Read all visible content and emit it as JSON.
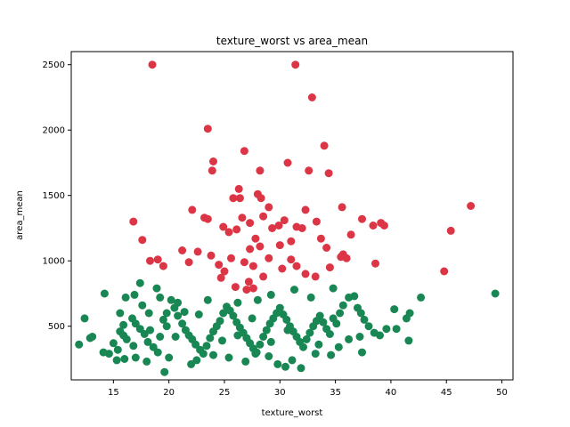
{
  "chart_data": {
    "type": "scatter",
    "title": "texture_worst vs area_mean",
    "xlabel": "texture_worst",
    "ylabel": "area_mean",
    "xlim": [
      11.2,
      51.0
    ],
    "ylim": [
      90,
      2600
    ],
    "xticks": [
      15,
      20,
      25,
      30,
      35,
      40,
      45,
      50
    ],
    "yticks": [
      500,
      1000,
      1500,
      2000,
      2500
    ],
    "grid": false,
    "colors": {
      "red": "#dc3545",
      "green": "#198754"
    },
    "series": [
      {
        "color": "#dc3545",
        "points": [
          [
            18.5,
            2500
          ],
          [
            31.4,
            2500
          ],
          [
            32.9,
            2250
          ],
          [
            23.5,
            2010
          ],
          [
            34.0,
            1880
          ],
          [
            26.8,
            1840
          ],
          [
            24.0,
            1760
          ],
          [
            23.9,
            1690
          ],
          [
            28.2,
            1690
          ],
          [
            30.7,
            1750
          ],
          [
            32.6,
            1690
          ],
          [
            34.4,
            1670
          ],
          [
            26.3,
            1550
          ],
          [
            25.8,
            1480
          ],
          [
            26.4,
            1480
          ],
          [
            28.0,
            1510
          ],
          [
            28.3,
            1480
          ],
          [
            22.1,
            1390
          ],
          [
            23.2,
            1330
          ],
          [
            23.5,
            1320
          ],
          [
            29.0,
            1410
          ],
          [
            32.3,
            1390
          ],
          [
            35.6,
            1410
          ],
          [
            28.5,
            1340
          ],
          [
            16.8,
            1300
          ],
          [
            26.6,
            1330
          ],
          [
            27.3,
            1290
          ],
          [
            29.9,
            1270
          ],
          [
            30.4,
            1310
          ],
          [
            31.5,
            1260
          ],
          [
            32.0,
            1250
          ],
          [
            33.3,
            1300
          ],
          [
            36.4,
            1200
          ],
          [
            37.4,
            1320
          ],
          [
            38.4,
            1270
          ],
          [
            39.1,
            1290
          ],
          [
            39.4,
            1270
          ],
          [
            24.9,
            1260
          ],
          [
            25.4,
            1220
          ],
          [
            26.1,
            1240
          ],
          [
            27.8,
            1170
          ],
          [
            29.3,
            1250
          ],
          [
            30.0,
            1120
          ],
          [
            31.0,
            1150
          ],
          [
            33.7,
            1170
          ],
          [
            34.2,
            1100
          ],
          [
            35.7,
            1050
          ],
          [
            45.4,
            1230
          ],
          [
            47.2,
            1420
          ],
          [
            17.6,
            1160
          ],
          [
            18.3,
            1000
          ],
          [
            19.0,
            1010
          ],
          [
            19.5,
            960
          ],
          [
            21.2,
            1080
          ],
          [
            21.8,
            990
          ],
          [
            22.6,
            1070
          ],
          [
            23.8,
            1040
          ],
          [
            24.5,
            970
          ],
          [
            25.0,
            920
          ],
          [
            25.6,
            1020
          ],
          [
            26.8,
            990
          ],
          [
            27.3,
            1090
          ],
          [
            28.2,
            1110
          ],
          [
            29.0,
            1020
          ],
          [
            30.2,
            940
          ],
          [
            31.0,
            1010
          ],
          [
            31.5,
            960
          ],
          [
            32.3,
            900
          ],
          [
            33.2,
            880
          ],
          [
            34.5,
            950
          ],
          [
            35.5,
            1030
          ],
          [
            36.0,
            1020
          ],
          [
            38.6,
            980
          ],
          [
            44.8,
            920
          ],
          [
            27.6,
            960
          ],
          [
            28.5,
            880
          ],
          [
            26.0,
            800
          ],
          [
            27.6,
            790
          ],
          [
            27.2,
            840
          ],
          [
            24.7,
            870
          ],
          [
            27.0,
            780
          ]
        ]
      },
      {
        "color": "#198754",
        "points": [
          [
            12.4,
            560
          ],
          [
            11.9,
            360
          ],
          [
            12.9,
            410
          ],
          [
            14.2,
            750
          ],
          [
            15.0,
            370
          ],
          [
            15.6,
            600
          ],
          [
            15.9,
            510
          ],
          [
            16.1,
            720
          ],
          [
            16.9,
            740
          ],
          [
            17.6,
            660
          ],
          [
            18.9,
            790
          ],
          [
            17.4,
            830
          ],
          [
            15.6,
            460
          ],
          [
            15.9,
            430
          ],
          [
            16.2,
            400
          ],
          [
            16.7,
            560
          ],
          [
            17.0,
            520
          ],
          [
            17.4,
            480
          ],
          [
            17.8,
            440
          ],
          [
            18.1,
            380
          ],
          [
            18.6,
            340
          ],
          [
            19.0,
            300
          ],
          [
            19.2,
            420
          ],
          [
            19.5,
            550
          ],
          [
            19.8,
            600
          ],
          [
            20.2,
            700
          ],
          [
            20.5,
            640
          ],
          [
            20.8,
            580
          ],
          [
            21.2,
            520
          ],
          [
            21.5,
            470
          ],
          [
            21.8,
            430
          ],
          [
            22.1,
            400
          ],
          [
            22.4,
            360
          ],
          [
            22.8,
            320
          ],
          [
            23.1,
            290
          ],
          [
            23.4,
            350
          ],
          [
            23.7,
            410
          ],
          [
            24.0,
            460
          ],
          [
            24.3,
            500
          ],
          [
            24.6,
            540
          ],
          [
            24.9,
            600
          ],
          [
            25.2,
            650
          ],
          [
            25.5,
            620
          ],
          [
            25.8,
            580
          ],
          [
            26.1,
            530
          ],
          [
            26.4,
            490
          ],
          [
            26.7,
            450
          ],
          [
            27.0,
            410
          ],
          [
            27.3,
            370
          ],
          [
            27.6,
            330
          ],
          [
            27.9,
            300
          ],
          [
            28.2,
            360
          ],
          [
            28.5,
            420
          ],
          [
            28.8,
            470
          ],
          [
            29.1,
            520
          ],
          [
            29.4,
            560
          ],
          [
            29.7,
            600
          ],
          [
            30.0,
            640
          ],
          [
            30.3,
            590
          ],
          [
            30.6,
            550
          ],
          [
            30.9,
            500
          ],
          [
            31.2,
            460
          ],
          [
            31.5,
            420
          ],
          [
            31.8,
            380
          ],
          [
            32.1,
            340
          ],
          [
            32.4,
            400
          ],
          [
            32.7,
            450
          ],
          [
            33.0,
            500
          ],
          [
            33.3,
            540
          ],
          [
            33.6,
            580
          ],
          [
            33.9,
            530
          ],
          [
            34.2,
            480
          ],
          [
            34.5,
            440
          ],
          [
            34.8,
            560
          ],
          [
            35.1,
            520
          ],
          [
            35.4,
            600
          ],
          [
            35.7,
            660
          ],
          [
            36.2,
            720
          ],
          [
            36.7,
            730
          ],
          [
            37.0,
            640
          ],
          [
            37.3,
            600
          ],
          [
            37.6,
            550
          ],
          [
            38.0,
            500
          ],
          [
            38.5,
            450
          ],
          [
            39.0,
            430
          ],
          [
            39.6,
            480
          ],
          [
            40.3,
            630
          ],
          [
            40.5,
            480
          ],
          [
            41.4,
            560
          ],
          [
            41.7,
            600
          ],
          [
            42.7,
            720
          ],
          [
            41.6,
            390
          ],
          [
            49.4,
            750
          ],
          [
            14.6,
            290
          ],
          [
            15.3,
            240
          ],
          [
            16.0,
            250
          ],
          [
            17.0,
            260
          ],
          [
            18.0,
            230
          ],
          [
            19.6,
            150
          ],
          [
            20.0,
            260
          ],
          [
            22.0,
            210
          ],
          [
            22.5,
            240
          ],
          [
            24.0,
            280
          ],
          [
            25.4,
            260
          ],
          [
            26.9,
            230
          ],
          [
            27.8,
            290
          ],
          [
            29.0,
            270
          ],
          [
            29.8,
            210
          ],
          [
            30.5,
            190
          ],
          [
            31.1,
            240
          ],
          [
            31.9,
            180
          ],
          [
            33.2,
            290
          ],
          [
            34.6,
            280
          ],
          [
            35.3,
            340
          ],
          [
            36.2,
            400
          ],
          [
            37.4,
            300
          ],
          [
            37.2,
            420
          ],
          [
            14.1,
            300
          ],
          [
            13.1,
            420
          ],
          [
            15.4,
            320
          ],
          [
            16.8,
            350
          ],
          [
            18.3,
            470
          ],
          [
            19.8,
            500
          ],
          [
            20.6,
            420
          ],
          [
            21.4,
            610
          ],
          [
            22.7,
            590
          ],
          [
            24.8,
            390
          ],
          [
            26.2,
            430
          ],
          [
            27.5,
            560
          ],
          [
            29.2,
            380
          ],
          [
            30.7,
            470
          ],
          [
            33.5,
            360
          ],
          [
            31.3,
            780
          ],
          [
            32.8,
            720
          ],
          [
            29.2,
            740
          ],
          [
            28.0,
            700
          ],
          [
            26.2,
            680
          ],
          [
            23.5,
            700
          ],
          [
            20.8,
            680
          ],
          [
            19.2,
            720
          ],
          [
            18.2,
            600
          ],
          [
            34.8,
            790
          ]
        ]
      }
    ]
  }
}
